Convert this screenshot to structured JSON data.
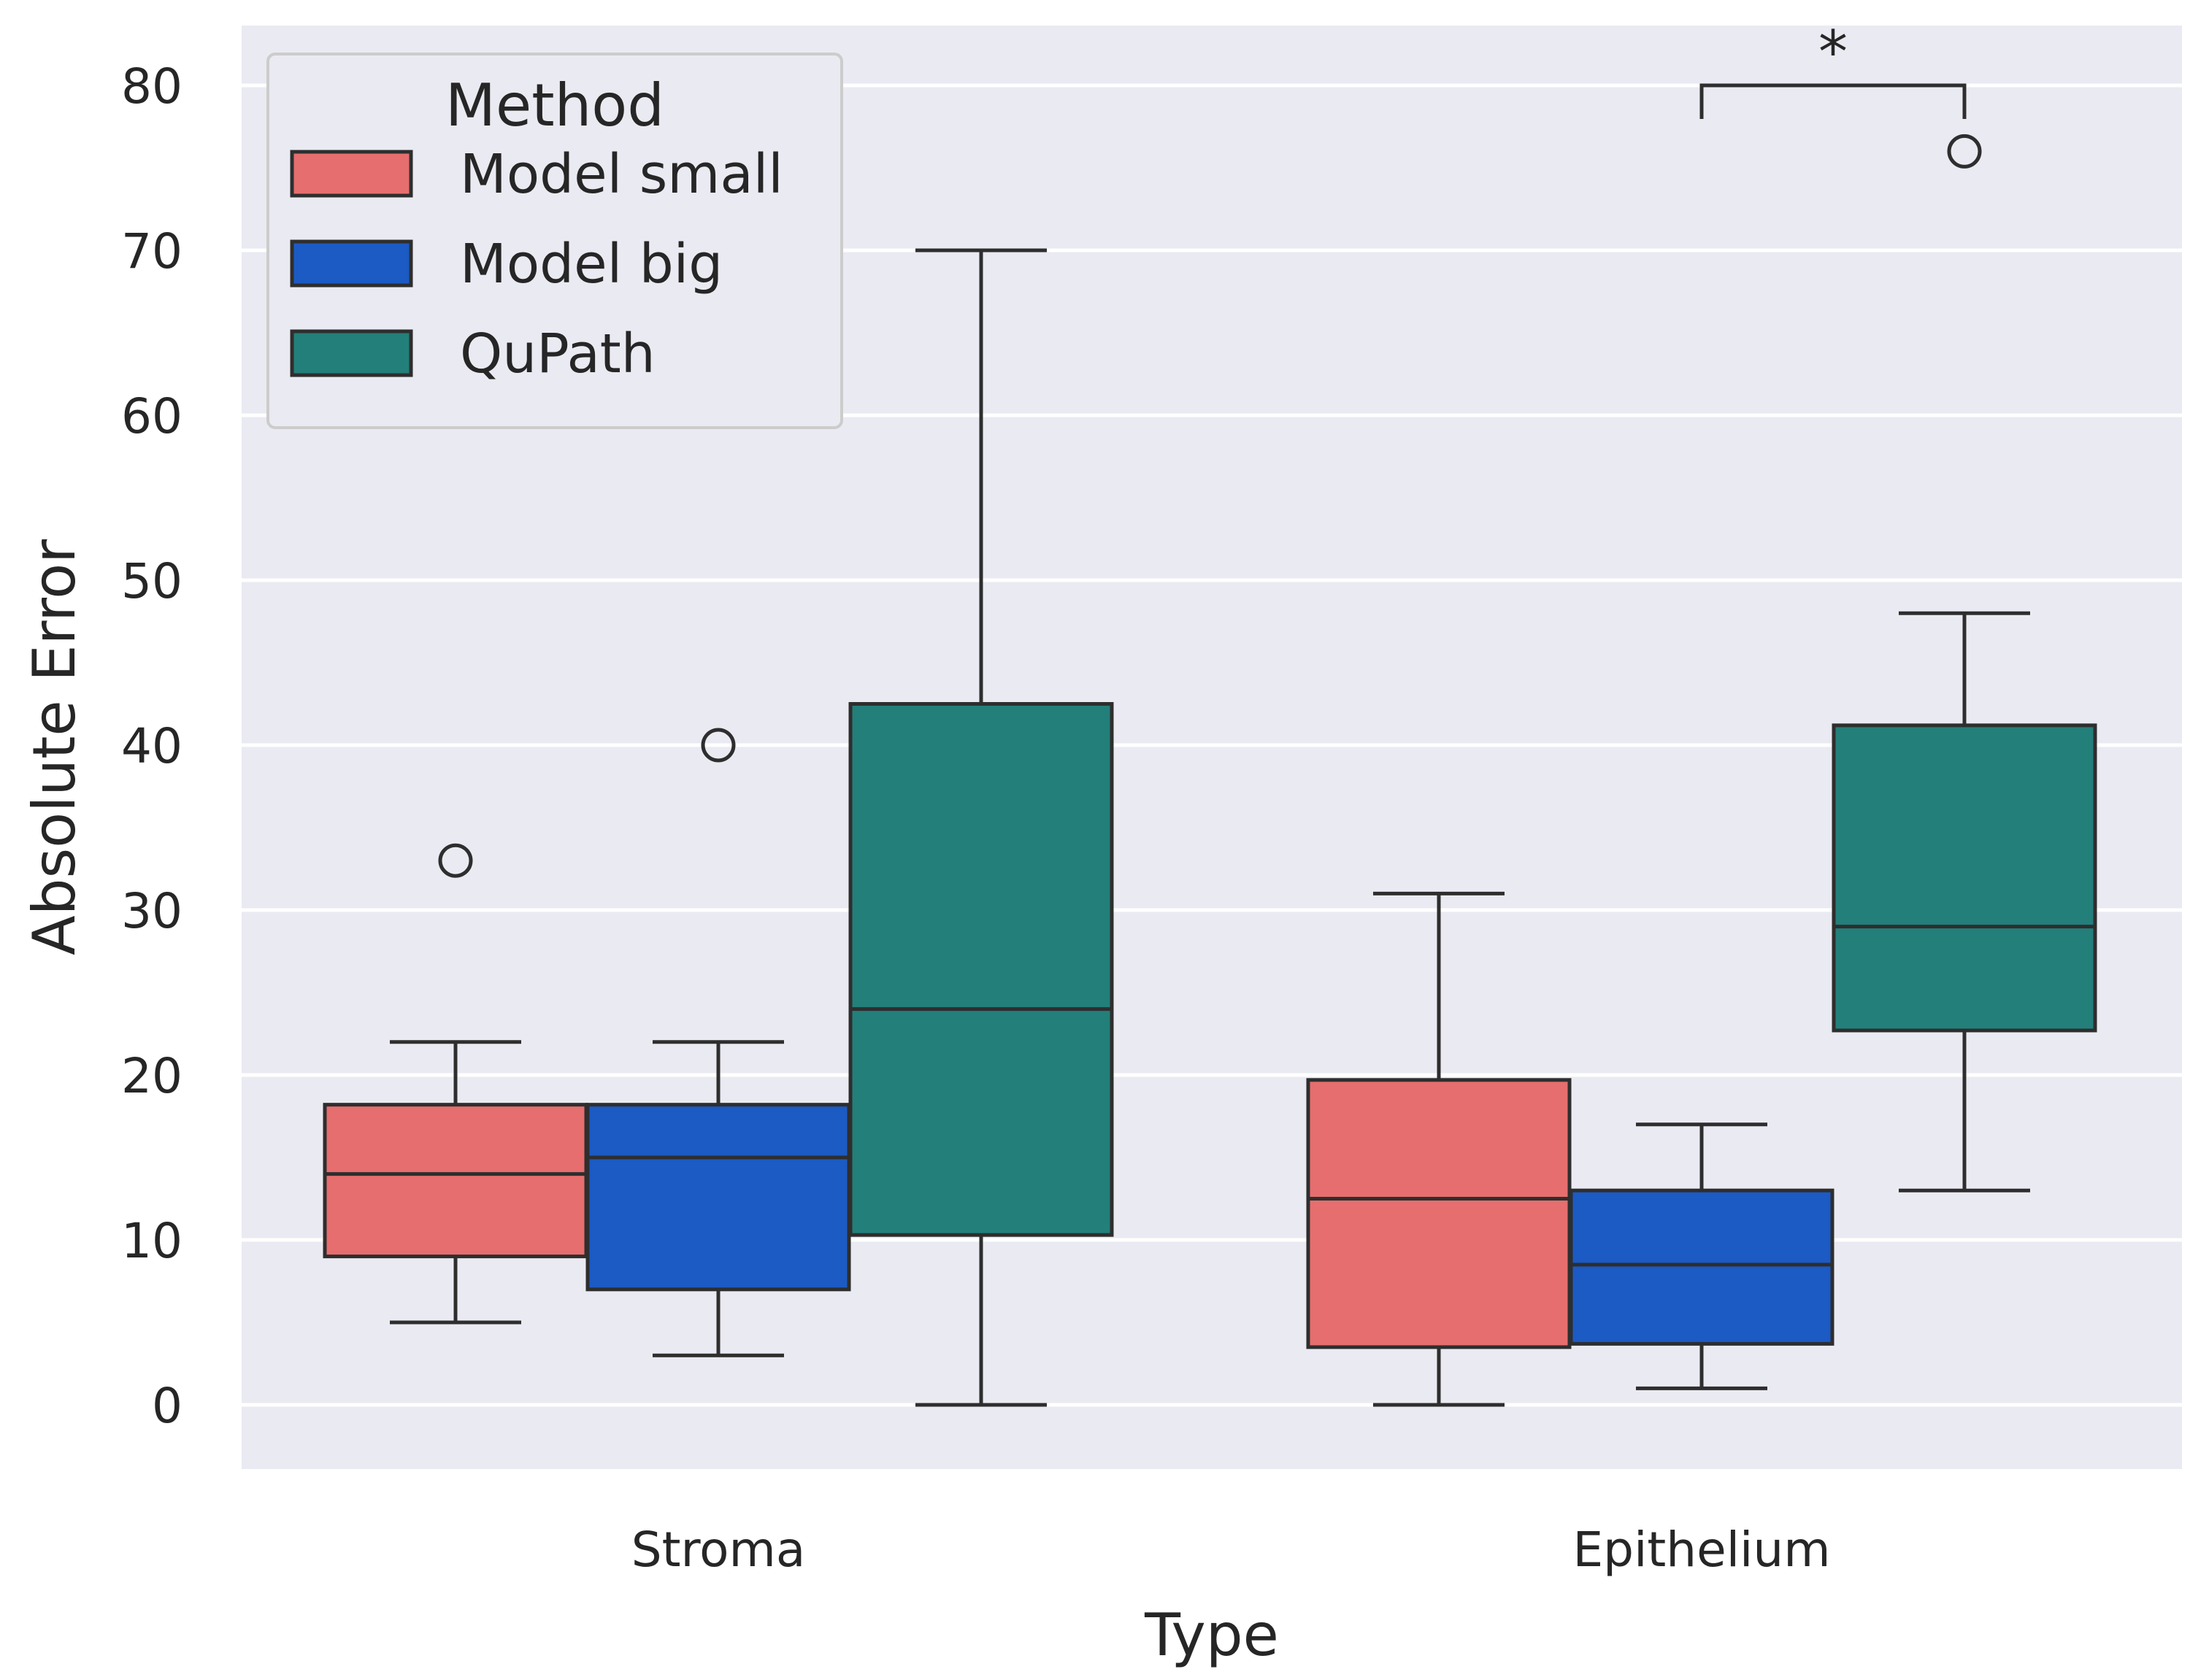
{
  "chart_data": {
    "type": "box",
    "title": "",
    "xlabel": "Type",
    "ylabel": "Absolute Error",
    "ylim": [
      -3.8,
      84
    ],
    "yticks": [
      0,
      10,
      20,
      30,
      40,
      50,
      60,
      70,
      80
    ],
    "grid": true,
    "legend_title": "Method",
    "legend_position": "top-left",
    "categories": [
      "Stroma",
      "Epithelium"
    ],
    "series": [
      {
        "name": "Model small",
        "color": "#e66e6e",
        "boxes": [
          {
            "category": "Stroma",
            "whisker_low": 5,
            "q1": 9,
            "median": 14,
            "q3": 18.2,
            "whisker_high": 22,
            "outliers": [
              33
            ]
          },
          {
            "category": "Epithelium",
            "whisker_low": 0,
            "q1": 3.5,
            "median": 12.5,
            "q3": 19.7,
            "whisker_high": 31,
            "outliers": []
          }
        ]
      },
      {
        "name": "Model big",
        "color": "#1c5ac4",
        "boxes": [
          {
            "category": "Stroma",
            "whisker_low": 3,
            "q1": 7,
            "median": 15,
            "q3": 18.2,
            "whisker_high": 22,
            "outliers": [
              40
            ]
          },
          {
            "category": "Epithelium",
            "whisker_low": 1,
            "q1": 3.7,
            "median": 8.5,
            "q3": 13,
            "whisker_high": 17,
            "outliers": []
          }
        ]
      },
      {
        "name": "QuPath",
        "color": "#237f7a",
        "boxes": [
          {
            "category": "Stroma",
            "whisker_low": 0,
            "q1": 10.3,
            "median": 24,
            "q3": 42.5,
            "whisker_high": 70,
            "outliers": []
          },
          {
            "category": "Epithelium",
            "whisker_low": 13,
            "q1": 22.7,
            "median": 29,
            "q3": 41.2,
            "whisker_high": 48,
            "outliers": [
              76
            ]
          }
        ]
      }
    ],
    "annotations": [
      {
        "category": "Epithelium",
        "from_series": "Model big",
        "to_series": "QuPath",
        "y": 80,
        "label": "*"
      }
    ]
  }
}
